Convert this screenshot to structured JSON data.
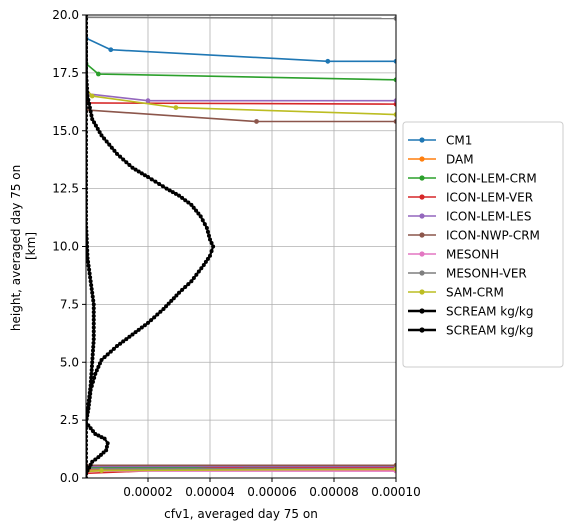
{
  "chart_data": {
    "type": "line",
    "title": "",
    "xlabel": "cfv1, averaged day 75 on",
    "ylabel_lines": [
      "height, averaged day 75 on",
      "[km]"
    ],
    "xlim": [
      0,
      0.0001
    ],
    "ylim": [
      0,
      20
    ],
    "xticks": [
      2e-05,
      4e-05,
      6e-05,
      8e-05,
      0.0001
    ],
    "xtick_labels": [
      "0.00002",
      "0.00004",
      "0.00006",
      "0.00008",
      "0.00010"
    ],
    "yticks": [
      0,
      2.5,
      5,
      7.5,
      10,
      12.5,
      15,
      17.5,
      20
    ],
    "ytick_labels": [
      "0.0",
      "2.5",
      "5.0",
      "7.5",
      "10.0",
      "12.5",
      "15.0",
      "17.5",
      "20.0"
    ],
    "grid": true,
    "legend_position": "right-outside",
    "series": [
      {
        "name": "CM1",
        "color": "#1f77b4",
        "points": [
          [
            0.0,
            19.0
          ],
          [
            8e-06,
            18.5
          ],
          [
            7.8e-05,
            18.0
          ],
          [
            0.0001,
            18.0
          ]
        ],
        "bottom": [
          [
            0.0,
            0.5
          ],
          [
            0.0001,
            0.5
          ]
        ]
      },
      {
        "name": "DAM",
        "color": "#ff7f0e",
        "points": [
          [
            0.0,
            0.35
          ],
          [
            0.0001,
            0.35
          ]
        ],
        "bottom": []
      },
      {
        "name": "ICON-LEM-CRM",
        "color": "#2ca02c",
        "points": [
          [
            0.0,
            17.9
          ],
          [
            4e-06,
            17.45
          ],
          [
            0.0001,
            17.2
          ]
        ],
        "bottom": [
          [
            0.0,
            0.45
          ],
          [
            0.0001,
            0.45
          ]
        ]
      },
      {
        "name": "ICON-LEM-VER",
        "color": "#d62728",
        "points": [
          [
            0.0,
            16.2
          ],
          [
            0.0001,
            16.15
          ]
        ],
        "bottom": [
          [
            0.0,
            0.2
          ],
          [
            5e-05,
            0.48
          ],
          [
            0.0001,
            0.45
          ]
        ]
      },
      {
        "name": "ICON-LEM-LES",
        "color": "#9467bd",
        "points": [
          [
            0.0,
            16.6
          ],
          [
            2e-05,
            16.3
          ],
          [
            0.0001,
            16.3
          ]
        ],
        "bottom": [
          [
            0.0,
            0.5
          ],
          [
            0.0001,
            0.5
          ]
        ]
      },
      {
        "name": "ICON-NWP-CRM",
        "color": "#8c564b",
        "points": [
          [
            0.0,
            15.9
          ],
          [
            5.5e-05,
            15.4
          ],
          [
            0.0001,
            15.4
          ]
        ],
        "bottom": [
          [
            0.0,
            0.55
          ],
          [
            0.0001,
            0.55
          ]
        ]
      },
      {
        "name": "MESONH",
        "color": "#e377c2",
        "points": [
          [
            0.0,
            0.3
          ],
          [
            0.0001,
            0.3
          ]
        ],
        "bottom": []
      },
      {
        "name": "MESONH-VER",
        "color": "#7f7f7f",
        "points": [
          [
            0.0,
            19.9
          ],
          [
            0.0001,
            19.85
          ]
        ],
        "bottom": [
          [
            0.0,
            0.4
          ],
          [
            0.0001,
            0.4
          ]
        ]
      },
      {
        "name": "SAM-CRM",
        "color": "#bcbd22",
        "points": [
          [
            0.0,
            16.8
          ],
          [
            2e-06,
            16.5
          ],
          [
            2.9e-05,
            16.0
          ],
          [
            0.0001,
            15.7
          ]
        ],
        "bottom": [
          [
            0.0,
            0.28
          ],
          [
            5e-06,
            0.32
          ],
          [
            0.0001,
            0.38
          ]
        ]
      },
      {
        "name": "SCREAM kg/kg",
        "color": "#000000",
        "thick": true,
        "points": [
          [
            0.0,
            20.0
          ],
          [
            0.0,
            17.5
          ],
          [
            5e-07,
            16.5
          ],
          [
            2e-06,
            15.5
          ],
          [
            5e-06,
            14.8
          ],
          [
            1e-05,
            14.0
          ],
          [
            1.5e-05,
            13.4
          ],
          [
            2e-05,
            13.0
          ],
          [
            2.6e-05,
            12.5
          ],
          [
            3e-05,
            12.2
          ],
          [
            3.4e-05,
            11.8
          ],
          [
            3.7e-05,
            11.3
          ],
          [
            3.9e-05,
            10.8
          ],
          [
            4e-05,
            10.3
          ],
          [
            4.1e-05,
            10.0
          ],
          [
            4e-05,
            9.6
          ],
          [
            3.8e-05,
            9.2
          ],
          [
            3.4e-05,
            8.5
          ],
          [
            3e-05,
            8.0
          ],
          [
            2.5e-05,
            7.3
          ],
          [
            2e-05,
            6.7
          ],
          [
            1.5e-05,
            6.2
          ],
          [
            1e-05,
            5.7
          ],
          [
            5e-06,
            5.1
          ],
          [
            3e-06,
            4.5
          ],
          [
            1.5e-06,
            3.8
          ],
          [
            8e-07,
            3.0
          ],
          [
            0.0,
            2.4
          ],
          [
            3e-06,
            1.9
          ],
          [
            6e-06,
            1.7
          ],
          [
            7e-06,
            1.5
          ],
          [
            6.5e-06,
            1.2
          ],
          [
            4e-06,
            0.9
          ],
          [
            2e-06,
            0.7
          ],
          [
            1e-06,
            0.45
          ],
          [
            0.0,
            0.2
          ],
          [
            0.0,
            0.0
          ]
        ]
      },
      {
        "name": "SCREAM kg/kg",
        "color": "#000000",
        "thick": true,
        "points": [
          [
            0.0,
            20.0
          ],
          [
            0.0,
            16.0
          ],
          [
            0.0,
            13.0
          ],
          [
            0.0,
            11.0
          ],
          [
            5e-07,
            9.5
          ],
          [
            1.5e-06,
            8.5
          ],
          [
            2.5e-06,
            7.5
          ],
          [
            2.5e-06,
            6.0
          ],
          [
            2e-06,
            5.0
          ],
          [
            1.5e-06,
            4.0
          ],
          [
            8e-07,
            3.2
          ],
          [
            0.0,
            2.5
          ],
          [
            0.0,
            0.0
          ]
        ]
      }
    ]
  }
}
